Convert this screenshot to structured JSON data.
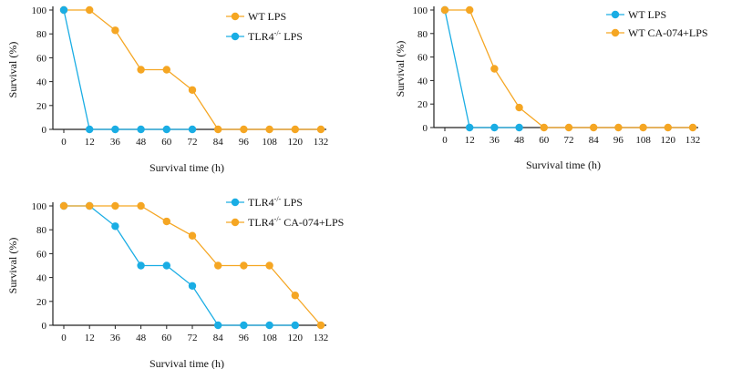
{
  "colors": {
    "orange": "#F5A623",
    "blue": "#1AADE4",
    "axis": "#222222"
  },
  "chart_data": [
    {
      "type": "line",
      "x": [
        0,
        12,
        36,
        48,
        60,
        72,
        84,
        96,
        108,
        120,
        132
      ],
      "x_tick_labels": [
        "0",
        "12",
        "36",
        "48",
        "60",
        "72",
        "84",
        "96",
        "108",
        "120",
        "132"
      ],
      "y_ticks": [
        "0",
        "20",
        "40",
        "60",
        "80",
        "100"
      ],
      "ylim": [
        0,
        100
      ],
      "xlabel": "Survival time (h)",
      "ylabel": "Survival (%)",
      "grid": false,
      "legend_position": "top-right",
      "series": [
        {
          "name": "WT LPS",
          "color": "#F5A623",
          "x": [
            0,
            12,
            36,
            48,
            60,
            72,
            84,
            96,
            108,
            120,
            132
          ],
          "values": [
            100,
            100,
            83,
            50,
            50,
            33,
            0,
            0,
            0,
            0,
            0
          ]
        },
        {
          "name": "TLR4-/- LPS",
          "color": "#1AADE4",
          "x": [
            0,
            12,
            36,
            48,
            60,
            72
          ],
          "values": [
            100,
            0,
            0,
            0,
            0,
            0
          ]
        }
      ]
    },
    {
      "type": "line",
      "x": [
        0,
        12,
        36,
        48,
        60,
        72,
        84,
        96,
        108,
        120,
        132
      ],
      "x_tick_labels": [
        "0",
        "12",
        "36",
        "48",
        "60",
        "72",
        "84",
        "96",
        "108",
        "120",
        "132"
      ],
      "y_ticks": [
        "0",
        "20",
        "40",
        "60",
        "80",
        "100"
      ],
      "ylim": [
        0,
        100
      ],
      "xlabel": "Survival time (h)",
      "ylabel": "Survival (%)",
      "grid": false,
      "legend_position": "top-right",
      "series": [
        {
          "name": "WT LPS",
          "color": "#1AADE4",
          "x": [
            0,
            12,
            36,
            48
          ],
          "values": [
            100,
            0,
            0,
            0
          ]
        },
        {
          "name": "WT CA-074+LPS",
          "color": "#F5A623",
          "x": [
            0,
            12,
            36,
            48,
            60,
            72,
            84,
            96,
            108,
            120,
            132
          ],
          "values": [
            100,
            100,
            50,
            17,
            0,
            0,
            0,
            0,
            0,
            0,
            0
          ]
        }
      ]
    },
    {
      "type": "line",
      "x": [
        0,
        12,
        36,
        48,
        60,
        72,
        84,
        96,
        108,
        120,
        132
      ],
      "x_tick_labels": [
        "0",
        "12",
        "36",
        "48",
        "60",
        "72",
        "84",
        "96",
        "108",
        "120",
        "132"
      ],
      "y_ticks": [
        "0",
        "20",
        "40",
        "60",
        "80",
        "100"
      ],
      "ylim": [
        0,
        100
      ],
      "xlabel": "Survival time (h)",
      "ylabel": "Survival (%)",
      "grid": false,
      "legend_position": "top-right",
      "series": [
        {
          "name": "TLR4-/- LPS",
          "color": "#1AADE4",
          "x": [
            0,
            12,
            36,
            48,
            60,
            72,
            84,
            96,
            108,
            120
          ],
          "values": [
            100,
            100,
            83,
            50,
            50,
            33,
            0,
            0,
            0,
            0
          ]
        },
        {
          "name": "TLR4-/- CA-074+LPS",
          "color": "#F5A623",
          "x": [
            0,
            12,
            36,
            48,
            60,
            72,
            84,
            96,
            108,
            120,
            132
          ],
          "values": [
            100,
            100,
            100,
            100,
            87,
            75,
            50,
            50,
            50,
            25,
            0
          ]
        }
      ]
    }
  ]
}
